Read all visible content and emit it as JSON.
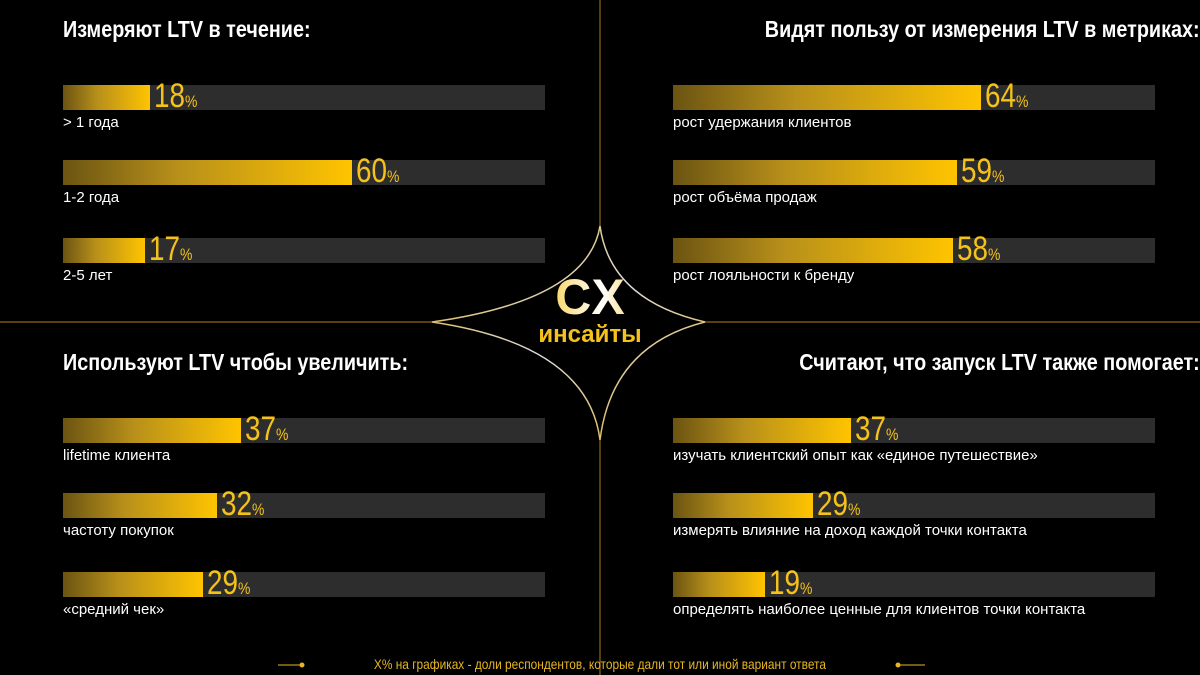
{
  "colors": {
    "accent": "#f5c21b",
    "track": "#2d2d2d",
    "background": "#000000"
  },
  "logo": {
    "main": "CX",
    "sub": "инсайты"
  },
  "footer": "X% на графиках - доли респондентов, которые дали тот или иной вариант ответа",
  "chart_data": [
    {
      "type": "bar",
      "title": "Измеряют LTV в течение:",
      "xlim": [
        0,
        100
      ],
      "unit": "%",
      "categories": [
        "> 1 года",
        "1-2 года",
        "2-5 лет"
      ],
      "values": [
        18,
        60,
        17
      ]
    },
    {
      "type": "bar",
      "title": "Видят пользу от измерения LTV в метриках:",
      "xlim": [
        0,
        100
      ],
      "unit": "%",
      "categories": [
        "рост удержания клиентов",
        "рост объёма продаж",
        "рост лояльности к бренду"
      ],
      "values": [
        64,
        59,
        58
      ]
    },
    {
      "type": "bar",
      "title": "Используют LTV чтобы увеличить:",
      "xlim": [
        0,
        100
      ],
      "unit": "%",
      "categories": [
        "lifetime  клиента",
        "частоту  покупок",
        "«средний чек»"
      ],
      "values": [
        37,
        32,
        29
      ]
    },
    {
      "type": "bar",
      "title": "Считают, что запуск LTV также помогает:",
      "xlim": [
        0,
        100
      ],
      "unit": "%",
      "categories": [
        "изучать клиентский опыт как «единое путешествие»",
        "измерять влияние на доход каждой точки контакта",
        "определять наиболее ценные для клиентов точки контакта"
      ],
      "values": [
        37,
        29,
        19
      ]
    }
  ]
}
